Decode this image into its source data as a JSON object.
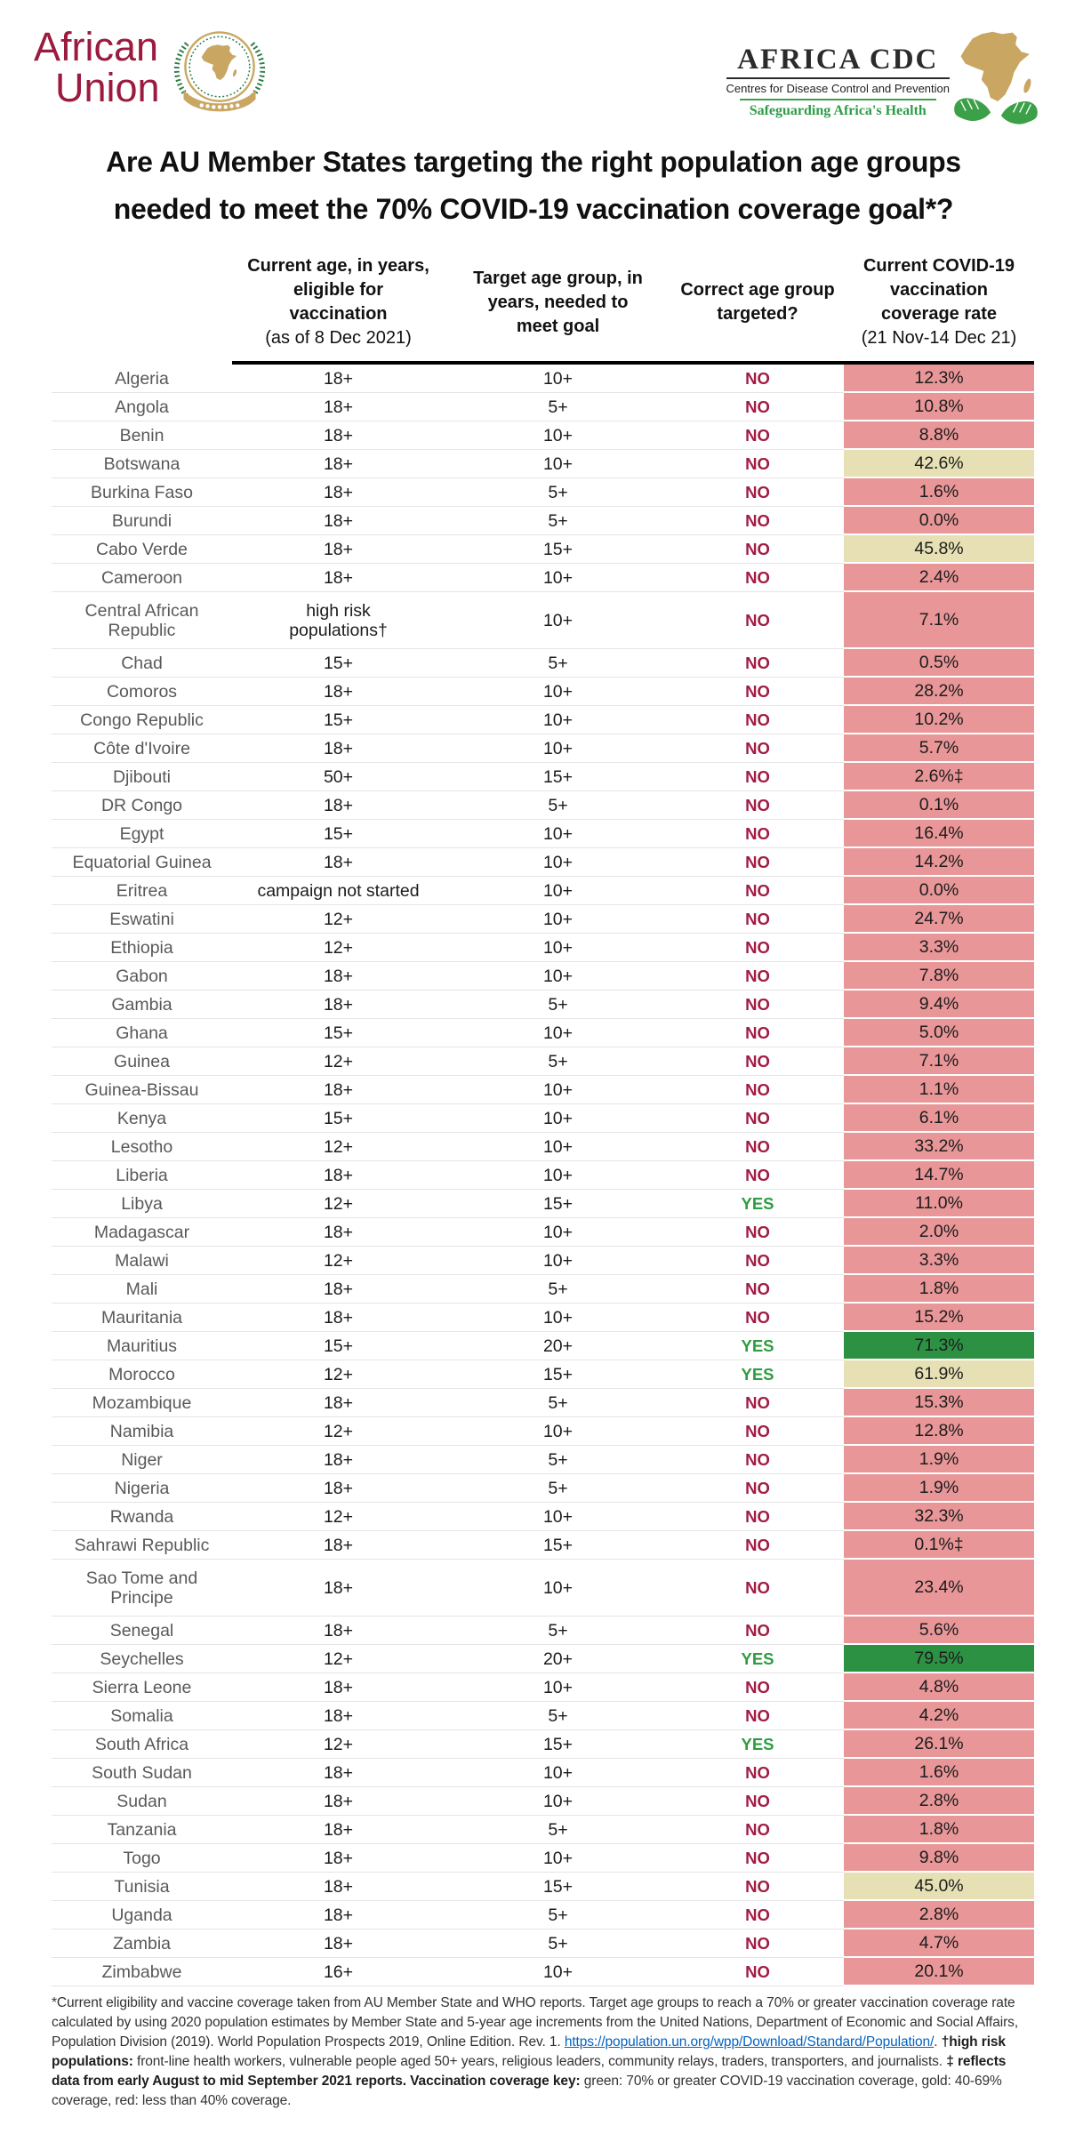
{
  "logos": {
    "au": {
      "line1": "African",
      "line2": "Union"
    },
    "cdc": {
      "title": "AFRICA CDC",
      "subtitle": "Centres for Disease Control and Prevention",
      "tagline": "Safeguarding Africa's Health"
    }
  },
  "title": {
    "line1": "Are AU Member States targeting the right population age groups",
    "line2": "needed to meet the 70% COVID-19 vaccination coverage goal*?"
  },
  "chart_data": {
    "type": "table",
    "title": "Are AU Member States targeting the right population age groups needed to meet the 70% COVID-19 vaccination coverage goal*?",
    "columns": [
      {
        "main": "",
        "sub": ""
      },
      {
        "main": "Current age, in years,\neligible for\nvaccination",
        "sub": "(as of 8 Dec 2021)"
      },
      {
        "main": "Target age group, in\nyears, needed to\nmeet goal",
        "sub": ""
      },
      {
        "main": "Correct age group\ntargeted?",
        "sub": ""
      },
      {
        "main": "Current COVID-19\nvaccination\ncoverage rate",
        "sub": "(21 Nov-14 Dec 21)"
      }
    ],
    "rows": [
      {
        "country": "Algeria",
        "eligible": "18+",
        "target": "10+",
        "correct": "NO",
        "coverage": "12.3%",
        "color": "red"
      },
      {
        "country": "Angola",
        "eligible": "18+",
        "target": "5+",
        "correct": "NO",
        "coverage": "10.8%",
        "color": "red"
      },
      {
        "country": "Benin",
        "eligible": "18+",
        "target": "10+",
        "correct": "NO",
        "coverage": "8.8%",
        "color": "red"
      },
      {
        "country": "Botswana",
        "eligible": "18+",
        "target": "10+",
        "correct": "NO",
        "coverage": "42.6%",
        "color": "gold"
      },
      {
        "country": "Burkina Faso",
        "eligible": "18+",
        "target": "5+",
        "correct": "NO",
        "coverage": "1.6%",
        "color": "red"
      },
      {
        "country": "Burundi",
        "eligible": "18+",
        "target": "5+",
        "correct": "NO",
        "coverage": "0.0%",
        "color": "red"
      },
      {
        "country": "Cabo Verde",
        "eligible": "18+",
        "target": "15+",
        "correct": "NO",
        "coverage": "45.8%",
        "color": "gold"
      },
      {
        "country": "Cameroon",
        "eligible": "18+",
        "target": "10+",
        "correct": "NO",
        "coverage": "2.4%",
        "color": "red"
      },
      {
        "country": "Central African\nRepublic",
        "eligible": "high risk\npopulations†",
        "target": "10+",
        "correct": "NO",
        "coverage": "7.1%",
        "color": "red"
      },
      {
        "country": "Chad",
        "eligible": "15+",
        "target": "5+",
        "correct": "NO",
        "coverage": "0.5%",
        "color": "red"
      },
      {
        "country": "Comoros",
        "eligible": "18+",
        "target": "10+",
        "correct": "NO",
        "coverage": "28.2%",
        "color": "red"
      },
      {
        "country": "Congo Republic",
        "eligible": "15+",
        "target": "10+",
        "correct": "NO",
        "coverage": "10.2%",
        "color": "red"
      },
      {
        "country": "Côte d'Ivoire",
        "eligible": "18+",
        "target": "10+",
        "correct": "NO",
        "coverage": "5.7%",
        "color": "red"
      },
      {
        "country": "Djibouti",
        "eligible": "50+",
        "target": "15+",
        "correct": "NO",
        "coverage": "2.6%‡",
        "color": "red"
      },
      {
        "country": "DR Congo",
        "eligible": "18+",
        "target": "5+",
        "correct": "NO",
        "coverage": "0.1%",
        "color": "red"
      },
      {
        "country": "Egypt",
        "eligible": "15+",
        "target": "10+",
        "correct": "NO",
        "coverage": "16.4%",
        "color": "red"
      },
      {
        "country": "Equatorial Guinea",
        "eligible": "18+",
        "target": "10+",
        "correct": "NO",
        "coverage": "14.2%",
        "color": "red"
      },
      {
        "country": "Eritrea",
        "eligible": "campaign not started",
        "target": "10+",
        "correct": "NO",
        "coverage": "0.0%",
        "color": "red"
      },
      {
        "country": "Eswatini",
        "eligible": "12+",
        "target": "10+",
        "correct": "NO",
        "coverage": "24.7%",
        "color": "red"
      },
      {
        "country": "Ethiopia",
        "eligible": "12+",
        "target": "10+",
        "correct": "NO",
        "coverage": "3.3%",
        "color": "red"
      },
      {
        "country": "Gabon",
        "eligible": "18+",
        "target": "10+",
        "correct": "NO",
        "coverage": "7.8%",
        "color": "red"
      },
      {
        "country": "Gambia",
        "eligible": "18+",
        "target": "5+",
        "correct": "NO",
        "coverage": "9.4%",
        "color": "red"
      },
      {
        "country": "Ghana",
        "eligible": "15+",
        "target": "10+",
        "correct": "NO",
        "coverage": "5.0%",
        "color": "red"
      },
      {
        "country": "Guinea",
        "eligible": "12+",
        "target": "5+",
        "correct": "NO",
        "coverage": "7.1%",
        "color": "red"
      },
      {
        "country": "Guinea-Bissau",
        "eligible": "18+",
        "target": "10+",
        "correct": "NO",
        "coverage": "1.1%",
        "color": "red"
      },
      {
        "country": "Kenya",
        "eligible": "15+",
        "target": "10+",
        "correct": "NO",
        "coverage": "6.1%",
        "color": "red"
      },
      {
        "country": "Lesotho",
        "eligible": "12+",
        "target": "10+",
        "correct": "NO",
        "coverage": "33.2%",
        "color": "red"
      },
      {
        "country": "Liberia",
        "eligible": "18+",
        "target": "10+",
        "correct": "NO",
        "coverage": "14.7%",
        "color": "red"
      },
      {
        "country": "Libya",
        "eligible": "12+",
        "target": "15+",
        "correct": "YES",
        "coverage": "11.0%",
        "color": "red"
      },
      {
        "country": "Madagascar",
        "eligible": "18+",
        "target": "10+",
        "correct": "NO",
        "coverage": "2.0%",
        "color": "red"
      },
      {
        "country": "Malawi",
        "eligible": "12+",
        "target": "10+",
        "correct": "NO",
        "coverage": "3.3%",
        "color": "red"
      },
      {
        "country": "Mali",
        "eligible": "18+",
        "target": "5+",
        "correct": "NO",
        "coverage": "1.8%",
        "color": "red"
      },
      {
        "country": "Mauritania",
        "eligible": "18+",
        "target": "10+",
        "correct": "NO",
        "coverage": "15.2%",
        "color": "red"
      },
      {
        "country": "Mauritius",
        "eligible": "15+",
        "target": "20+",
        "correct": "YES",
        "coverage": "71.3%",
        "color": "green"
      },
      {
        "country": "Morocco",
        "eligible": "12+",
        "target": "15+",
        "correct": "YES",
        "coverage": "61.9%",
        "color": "gold"
      },
      {
        "country": "Mozambique",
        "eligible": "18+",
        "target": "5+",
        "correct": "NO",
        "coverage": "15.3%",
        "color": "red"
      },
      {
        "country": "Namibia",
        "eligible": "12+",
        "target": "10+",
        "correct": "NO",
        "coverage": "12.8%",
        "color": "red"
      },
      {
        "country": "Niger",
        "eligible": "18+",
        "target": "5+",
        "correct": "NO",
        "coverage": "1.9%",
        "color": "red"
      },
      {
        "country": "Nigeria",
        "eligible": "18+",
        "target": "5+",
        "correct": "NO",
        "coverage": "1.9%",
        "color": "red"
      },
      {
        "country": "Rwanda",
        "eligible": "12+",
        "target": "10+",
        "correct": "NO",
        "coverage": "32.3%",
        "color": "red"
      },
      {
        "country": "Sahrawi Republic",
        "eligible": "18+",
        "target": "15+",
        "correct": "NO",
        "coverage": "0.1%‡",
        "color": "red"
      },
      {
        "country": "Sao Tome and\nPrincipe",
        "eligible": "18+",
        "target": "10+",
        "correct": "NO",
        "coverage": "23.4%",
        "color": "red"
      },
      {
        "country": "Senegal",
        "eligible": "18+",
        "target": "5+",
        "correct": "NO",
        "coverage": "5.6%",
        "color": "red"
      },
      {
        "country": "Seychelles",
        "eligible": "12+",
        "target": "20+",
        "correct": "YES",
        "coverage": "79.5%",
        "color": "green"
      },
      {
        "country": "Sierra Leone",
        "eligible": "18+",
        "target": "10+",
        "correct": "NO",
        "coverage": "4.8%",
        "color": "red"
      },
      {
        "country": "Somalia",
        "eligible": "18+",
        "target": "5+",
        "correct": "NO",
        "coverage": "4.2%",
        "color": "red"
      },
      {
        "country": "South Africa",
        "eligible": "12+",
        "target": "15+",
        "correct": "YES",
        "coverage": "26.1%",
        "color": "red"
      },
      {
        "country": "South Sudan",
        "eligible": "18+",
        "target": "10+",
        "correct": "NO",
        "coverage": "1.6%",
        "color": "red"
      },
      {
        "country": "Sudan",
        "eligible": "18+",
        "target": "10+",
        "correct": "NO",
        "coverage": "2.8%",
        "color": "red"
      },
      {
        "country": "Tanzania",
        "eligible": "18+",
        "target": "5+",
        "correct": "NO",
        "coverage": "1.8%",
        "color": "red"
      },
      {
        "country": "Togo",
        "eligible": "18+",
        "target": "10+",
        "correct": "NO",
        "coverage": "9.8%",
        "color": "red"
      },
      {
        "country": "Tunisia",
        "eligible": "18+",
        "target": "15+",
        "correct": "NO",
        "coverage": "45.0%",
        "color": "gold"
      },
      {
        "country": "Uganda",
        "eligible": "18+",
        "target": "5+",
        "correct": "NO",
        "coverage": "2.8%",
        "color": "red"
      },
      {
        "country": "Zambia",
        "eligible": "18+",
        "target": "5+",
        "correct": "NO",
        "coverage": "4.7%",
        "color": "red"
      },
      {
        "country": "Zimbabwe",
        "eligible": "16+",
        "target": "10+",
        "correct": "NO",
        "coverage": "20.1%",
        "color": "red"
      }
    ],
    "coverage_key": {
      "green": "70% or greater COVID-19 vaccination coverage",
      "gold": "40-69% coverage",
      "red": "less than 40% coverage"
    }
  },
  "footnote": {
    "segments": [
      {
        "text": "*Current eligibility and vaccine coverage taken from AU Member State and WHO reports. Target age groups to reach a 70% or greater vaccination coverage rate calculated by using 2020 population estimates by Member State and 5-year age increments from the United Nations, Department of Economic and Social Affairs, Population Division (2019). World Population Prospects 2019, Online Edition. Rev. 1. ",
        "bold": false
      },
      {
        "text": "https://population.un.org/wpp/Download/Standard/Population/",
        "bold": false,
        "link": true
      },
      {
        "text": ". ",
        "bold": false
      },
      {
        "text": "†high risk populations:",
        "bold": true
      },
      {
        "text": " front-line health workers, vulnerable people aged 50+ years, religious leaders, community relays, traders, transporters, and journalists. ",
        "bold": false
      },
      {
        "text": "‡ reflects data from early August to mid September 2021 reports. ",
        "bold": true
      },
      {
        "text": "Vaccination coverage key:",
        "bold": true
      },
      {
        "text": " green: 70% or greater COVID-19 vaccination coverage, gold: 40-69% coverage, red: less than 40% coverage.",
        "bold": false
      }
    ]
  },
  "colors": {
    "coverage_red": "#E89697",
    "coverage_gold": "#E6E0B4",
    "coverage_green": "#2D9144",
    "no_text": "#A11C43",
    "yes_text": "#2E9C41",
    "au_maroon": "#9B1B3F",
    "cdc_green": "#3BA047",
    "map_gold": "#C9A763"
  }
}
